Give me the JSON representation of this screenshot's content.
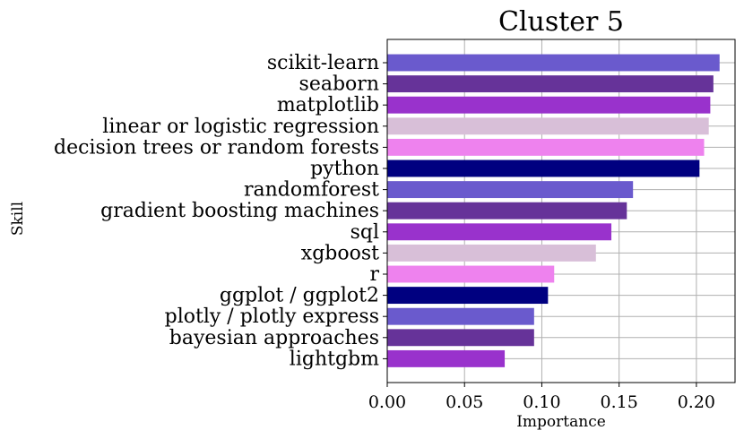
{
  "chart_data": {
    "type": "bar",
    "orientation": "horizontal",
    "title": "Cluster 5",
    "xlabel": "Importance",
    "ylabel": "Skill",
    "xlim": [
      0,
      0.225
    ],
    "xticks": [
      "0.00",
      "0.05",
      "0.10",
      "0.15",
      "0.20"
    ],
    "grid": true,
    "categories": [
      "scikit-learn",
      "seaborn",
      "matplotlib",
      "linear or logistic regression",
      "decision trees or random forests",
      "python",
      "randomforest",
      "gradient boosting machines",
      "sql",
      "xgboost",
      "r",
      "ggplot / ggplot2",
      "plotly / plotly express",
      "bayesian approaches",
      "lightgbm"
    ],
    "values": [
      0.215,
      0.211,
      0.209,
      0.208,
      0.205,
      0.202,
      0.159,
      0.155,
      0.145,
      0.135,
      0.108,
      0.104,
      0.095,
      0.095,
      0.076
    ],
    "colors": [
      "#6a5acd",
      "#663399",
      "#9932cc",
      "#d8bfd8",
      "#ee82ee",
      "#000080",
      "#6a5acd",
      "#663399",
      "#9932cc",
      "#d8bfd8",
      "#ee82ee",
      "#000080",
      "#6a5acd",
      "#663399",
      "#9932cc"
    ],
    "grid_color": "#b0b0b0"
  }
}
